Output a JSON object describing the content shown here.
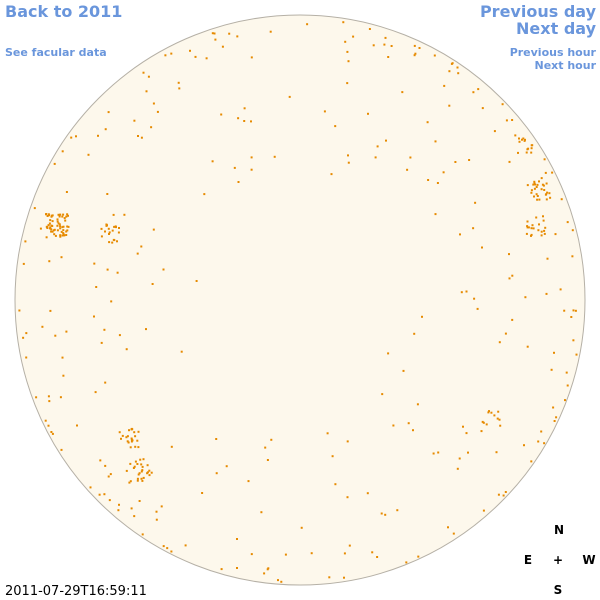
{
  "header": {
    "back_link": "Back to 2011",
    "facular_link": "See facular data"
  },
  "navigation": {
    "previous_day": "Previous day",
    "next_day": "Next day",
    "previous_hour": "Previous hour",
    "next_hour": "Next hour"
  },
  "compass": {
    "north": "N",
    "east": "E",
    "center": "+",
    "west": "W",
    "south": "S"
  },
  "timestamp": "2011-07-29T16:59:11"
}
